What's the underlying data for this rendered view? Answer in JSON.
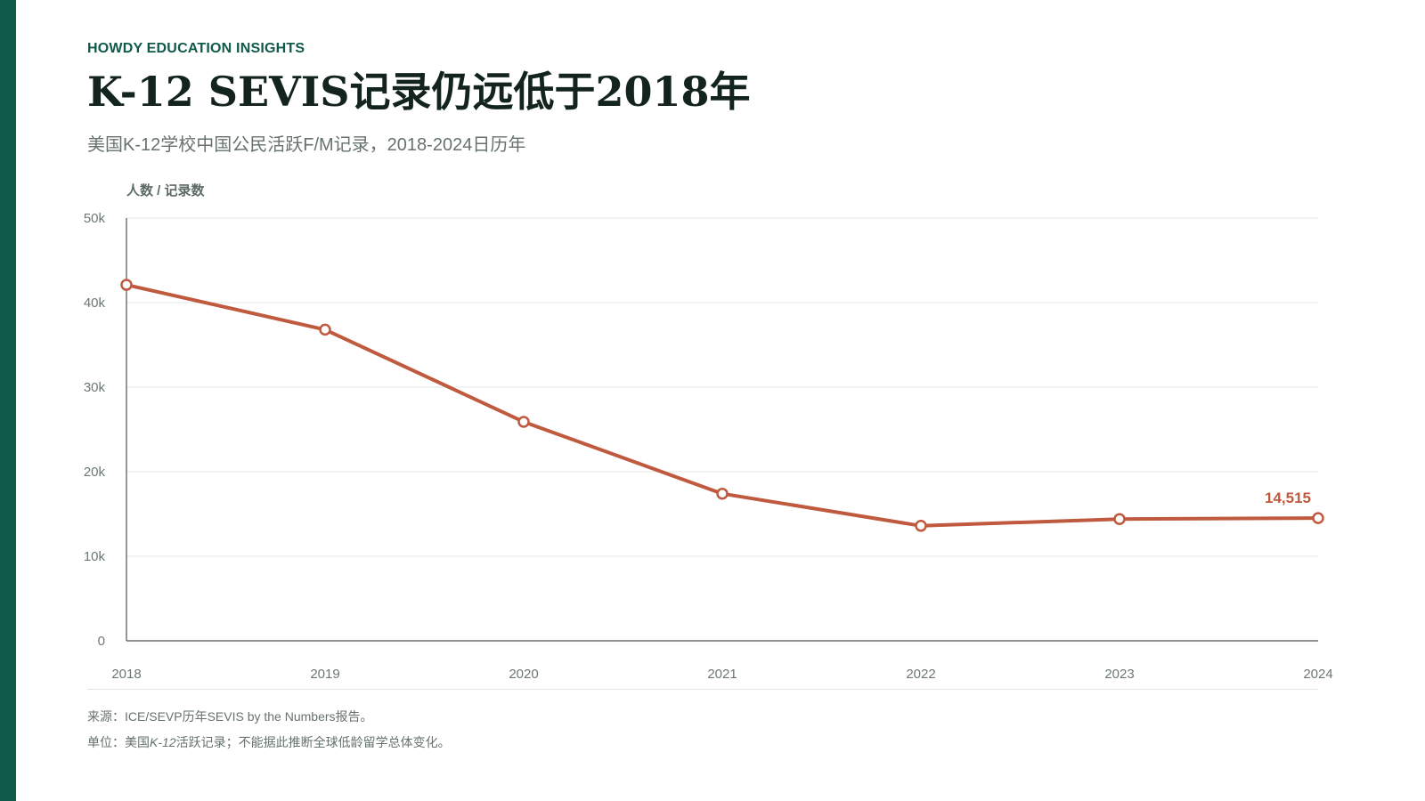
{
  "brand": {
    "eyebrow": "HOWDY EDUCATION INSIGHTS",
    "accent_color": "#0f5a48"
  },
  "header": {
    "title": "K-12 SEVIS记录仍远低于2018年",
    "subtitle": "美国K-12学校中国公民活跃F/M记录，2018-2024日历年"
  },
  "chart_data": {
    "type": "line",
    "title": "",
    "ylabel": "人数 / 记录数",
    "xlabel": "",
    "x": [
      "2018",
      "2019",
      "2020",
      "2021",
      "2022",
      "2023",
      "2024"
    ],
    "series": [
      {
        "values": [
          42100,
          36800,
          25900,
          17400,
          13600,
          14400,
          14515
        ],
        "color": "#c05a3f"
      }
    ],
    "ylim": [
      0,
      50000
    ],
    "yticks": [
      0,
      10000,
      20000,
      30000,
      40000,
      50000
    ],
    "ytick_labels": [
      "0",
      "10k",
      "20k",
      "30k",
      "40k",
      "50k"
    ],
    "grid": true,
    "legend": "none",
    "annotations": [
      {
        "x": "2024",
        "text": "14,515"
      }
    ]
  },
  "footer": {
    "source": "来源：ICE/SEVP历年SEVIS by the Numbers报告。",
    "unit_prefix": "单位：美国",
    "unit_italic": "K-12",
    "unit_suffix": "活跃记录；不能据此推断全球低龄留学总体变化。"
  }
}
